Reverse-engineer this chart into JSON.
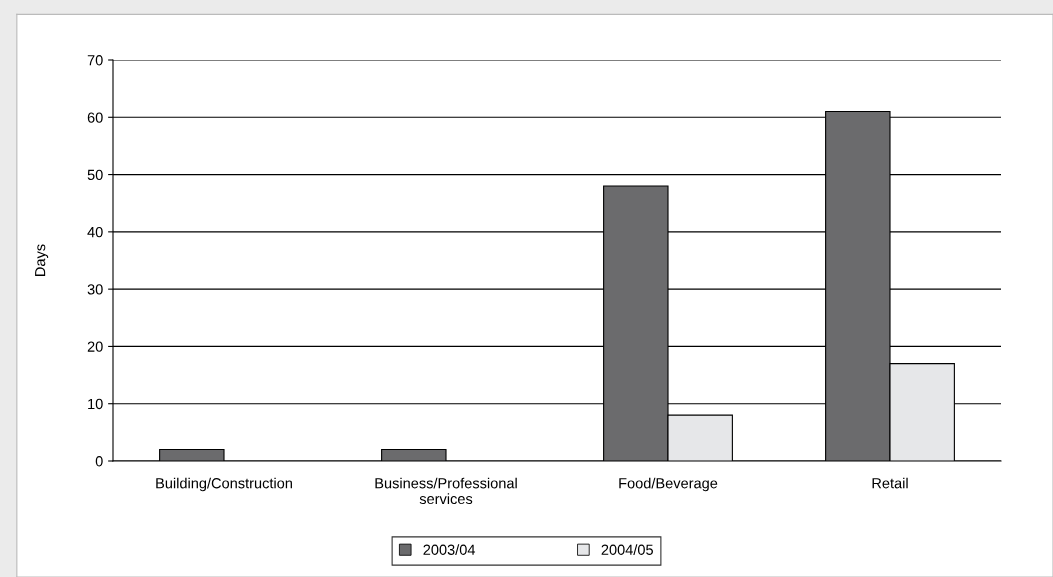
{
  "chart_data": {
    "type": "bar",
    "ylabel": "Days",
    "categories": [
      "Building/Construction",
      "Business/Professional\nservices",
      "Food/Beverage",
      "Retail"
    ],
    "series": [
      {
        "name": "2003/04",
        "color": "#6b6b6d",
        "values": [
          2,
          2,
          48,
          61
        ]
      },
      {
        "name": "2004/05",
        "color": "#e6e7e9",
        "values": [
          null,
          null,
          8,
          17
        ]
      }
    ],
    "ylim": [
      0,
      70
    ],
    "yticks": [
      0,
      10,
      20,
      30,
      40,
      50,
      60,
      70
    ],
    "grid": "y",
    "legend": "bottom"
  }
}
